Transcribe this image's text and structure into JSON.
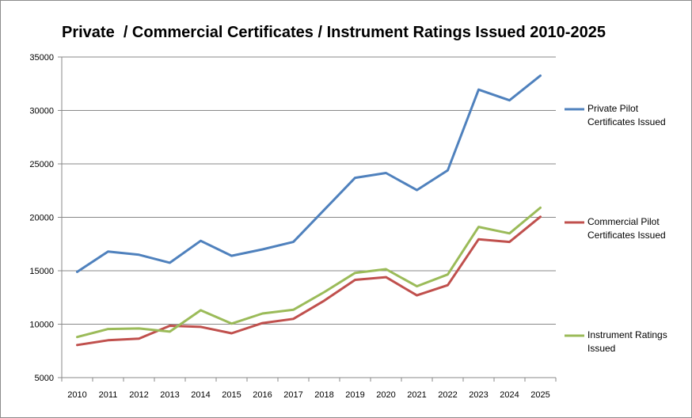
{
  "chart_data": {
    "type": "line",
    "title": "Private  / Commercial Certificates / Instrument Ratings Issued 2010-2025",
    "xlabel": "",
    "ylabel": "",
    "categories": [
      "2010",
      "2011",
      "2012",
      "2013",
      "2014",
      "2015",
      "2016",
      "2017",
      "2018",
      "2019",
      "2020",
      "2021",
      "2022",
      "2023",
      "2024",
      "2025"
    ],
    "ylim": [
      5000,
      35000
    ],
    "yticks": [
      5000,
      10000,
      15000,
      20000,
      25000,
      30000,
      35000
    ],
    "grid": true,
    "legend_position": "right",
    "series": [
      {
        "name": "Private Pilot Certificates Issued",
        "legend_lines": [
          "Private Pilot",
          "Certificates Issued"
        ],
        "color": "#4f81bd",
        "values": [
          14900,
          16800,
          16500,
          15750,
          17800,
          16400,
          17000,
          17700,
          20700,
          23700,
          24150,
          22550,
          24400,
          31950,
          30950,
          33250
        ]
      },
      {
        "name": "Commercial Pilot Certificates Issued",
        "legend_lines": [
          "Commercial Pilot",
          "Certificates Issued"
        ],
        "color": "#c0504d",
        "values": [
          8050,
          8500,
          8650,
          9850,
          9750,
          9150,
          10100,
          10500,
          12200,
          14150,
          14400,
          12700,
          13650,
          17950,
          17700,
          20050
        ]
      },
      {
        "name": "Instrument Ratings Issued",
        "legend_lines": [
          "Instrument Ratings",
          "Issued"
        ],
        "color": "#9bbb59",
        "values": [
          8800,
          9550,
          9600,
          9300,
          11300,
          10050,
          11000,
          11350,
          13000,
          14800,
          15150,
          13550,
          14650,
          19100,
          18500,
          20900
        ]
      }
    ]
  }
}
